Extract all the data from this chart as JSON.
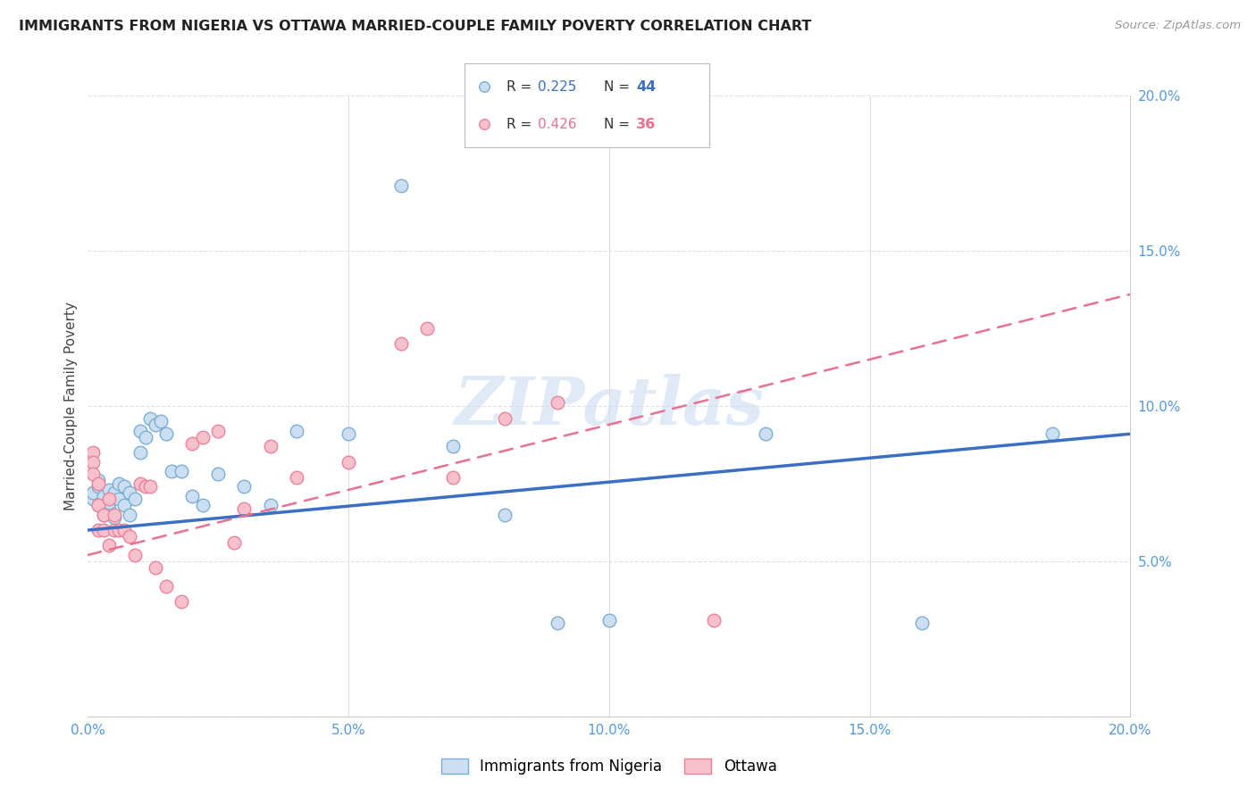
{
  "title": "IMMIGRANTS FROM NIGERIA VS OTTAWA MARRIED-COUPLE FAMILY POVERTY CORRELATION CHART",
  "source": "Source: ZipAtlas.com",
  "ylabel": "Married-Couple Family Poverty",
  "series1_label": "Immigrants from Nigeria",
  "series2_label": "Ottawa",
  "series1_R": "0.225",
  "series1_N": "44",
  "series2_R": "0.426",
  "series2_N": "36",
  "series1_color": "#ccdff2",
  "series2_color": "#f8c0cc",
  "series1_edge_color": "#7aafd4",
  "series2_edge_color": "#e8849a",
  "trend1_color": "#3a6fc4",
  "trend2_color": "#e87090",
  "background_color": "#ffffff",
  "grid_color": "#e0e0e0",
  "xlim": [
    0.0,
    0.2
  ],
  "ylim": [
    0.0,
    0.2
  ],
  "xticks": [
    0.0,
    0.05,
    0.1,
    0.15,
    0.2
  ],
  "yticks": [
    0.0,
    0.05,
    0.1,
    0.15,
    0.2
  ],
  "tick_color": "#5599dd",
  "watermark_text": "ZIPatlas",
  "series1_x": [
    0.001,
    0.001,
    0.002,
    0.002,
    0.002,
    0.003,
    0.003,
    0.003,
    0.004,
    0.004,
    0.004,
    0.005,
    0.005,
    0.006,
    0.006,
    0.007,
    0.007,
    0.008,
    0.008,
    0.009,
    0.01,
    0.01,
    0.011,
    0.012,
    0.013,
    0.014,
    0.015,
    0.016,
    0.018,
    0.02,
    0.022,
    0.025,
    0.03,
    0.035,
    0.04,
    0.05,
    0.06,
    0.07,
    0.08,
    0.09,
    0.1,
    0.13,
    0.16,
    0.185
  ],
  "series1_y": [
    0.07,
    0.072,
    0.068,
    0.074,
    0.076,
    0.065,
    0.071,
    0.068,
    0.067,
    0.073,
    0.069,
    0.064,
    0.072,
    0.07,
    0.075,
    0.068,
    0.074,
    0.072,
    0.065,
    0.07,
    0.092,
    0.085,
    0.09,
    0.096,
    0.094,
    0.095,
    0.091,
    0.079,
    0.079,
    0.071,
    0.068,
    0.078,
    0.074,
    0.068,
    0.092,
    0.091,
    0.171,
    0.087,
    0.065,
    0.03,
    0.031,
    0.091,
    0.03,
    0.091
  ],
  "series2_x": [
    0.001,
    0.001,
    0.001,
    0.002,
    0.002,
    0.002,
    0.003,
    0.003,
    0.004,
    0.004,
    0.005,
    0.005,
    0.006,
    0.007,
    0.008,
    0.009,
    0.01,
    0.011,
    0.012,
    0.013,
    0.015,
    0.018,
    0.02,
    0.022,
    0.025,
    0.028,
    0.03,
    0.035,
    0.04,
    0.05,
    0.06,
    0.065,
    0.07,
    0.08,
    0.09,
    0.12
  ],
  "series2_y": [
    0.085,
    0.082,
    0.078,
    0.075,
    0.068,
    0.06,
    0.065,
    0.06,
    0.07,
    0.055,
    0.06,
    0.065,
    0.06,
    0.06,
    0.058,
    0.052,
    0.075,
    0.074,
    0.074,
    0.048,
    0.042,
    0.037,
    0.088,
    0.09,
    0.092,
    0.056,
    0.067,
    0.087,
    0.077,
    0.082,
    0.12,
    0.125,
    0.077,
    0.096,
    0.101,
    0.031
  ],
  "trend1_intercept": 0.06,
  "trend1_slope": 0.155,
  "trend2_intercept": 0.052,
  "trend2_slope": 0.42
}
